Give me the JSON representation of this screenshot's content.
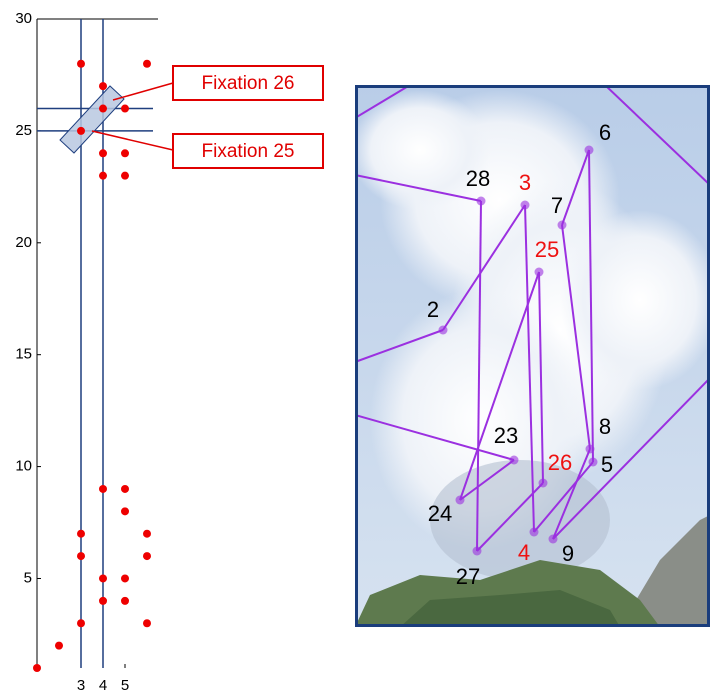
{
  "chart_data": {
    "type": "scatter",
    "x": [
      3,
      3,
      3,
      3,
      3,
      4,
      4,
      4,
      4,
      4,
      4,
      4,
      5,
      5,
      5,
      5,
      5,
      5,
      5,
      6,
      6,
      6,
      6,
      2,
      1
    ],
    "y": [
      28,
      25,
      7,
      6,
      3,
      27,
      26,
      24,
      23,
      9,
      5,
      4,
      26,
      24,
      23,
      9,
      8,
      5,
      4,
      28,
      7,
      6,
      3,
      2,
      1
    ],
    "color": "#ee0000",
    "xlim": [
      1,
      6.5
    ],
    "ylim": [
      1,
      30
    ],
    "xticks": [
      3,
      4,
      5
    ],
    "yticks": [
      5,
      10,
      15,
      20,
      25,
      30
    ],
    "vlines": [
      3,
      4
    ],
    "hlines": [
      25,
      26
    ],
    "line_color": "#1f3f7f",
    "annotations": [
      "Fixation 26",
      "Fixation 25"
    ]
  },
  "scanpath": {
    "line_color": "#9b30e0",
    "fixations": [
      {
        "label": "2",
        "color": "#000000"
      },
      {
        "label": "3",
        "color": "#ee1111"
      },
      {
        "label": "4",
        "color": "#ee1111"
      },
      {
        "label": "5",
        "color": "#000000"
      },
      {
        "label": "6",
        "color": "#000000"
      },
      {
        "label": "7",
        "color": "#000000"
      },
      {
        "label": "8",
        "color": "#000000"
      },
      {
        "label": "9",
        "color": "#000000"
      },
      {
        "label": "23",
        "color": "#000000"
      },
      {
        "label": "24",
        "color": "#000000"
      },
      {
        "label": "25",
        "color": "#ee1111"
      },
      {
        "label": "26",
        "color": "#ee1111"
      },
      {
        "label": "27",
        "color": "#000000"
      },
      {
        "label": "28",
        "color": "#000000"
      }
    ]
  }
}
